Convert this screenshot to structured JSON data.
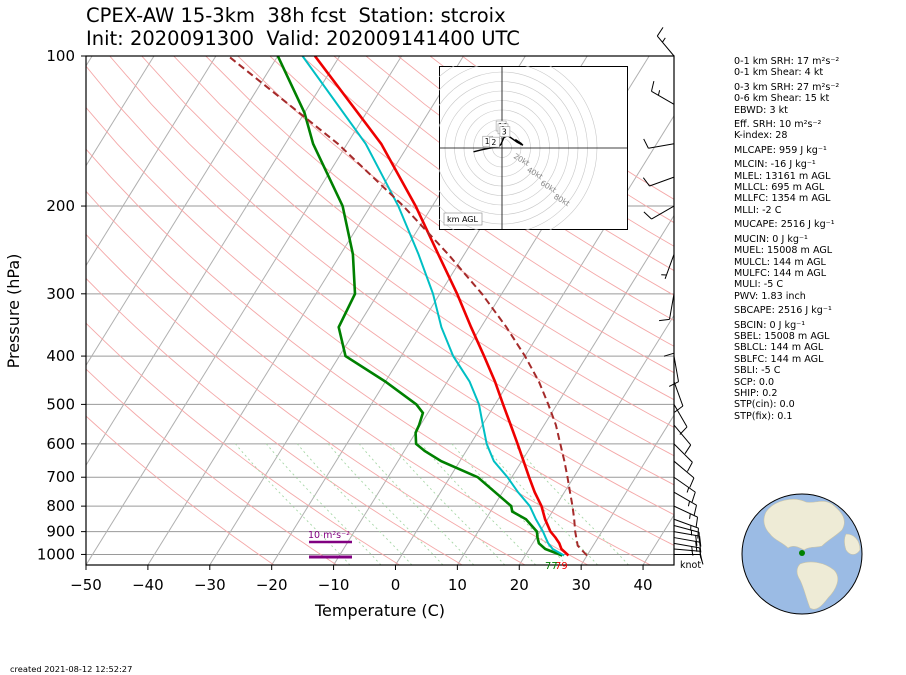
{
  "header": {
    "title_line1": "CPEX-AW 15-3km  38h fcst  Station: stcroix",
    "title_line2": "Init: 2020091300  Valid: 202009141400 UTC"
  },
  "footer": {
    "created": "created 2021-08-12 12:52:27"
  },
  "colors": {
    "temperature": "#ee0000",
    "dewpoint": "#008000",
    "wetbulb": "#00bfc4",
    "parcel": "#a52a2a",
    "srh_bar": "#800080",
    "dry_adiabat": "#f4a8a8",
    "moist_adiabat": "#a7d7a7",
    "isotherm": "#b0b0b0",
    "globe_ocean": "#9bbbe4",
    "globe_land": "#eeebd6"
  },
  "chart_data": {
    "type": "skew-t log-p",
    "xlabel": "Temperature (C)",
    "ylabel": "Pressure (hPa)",
    "xlim": [
      -50,
      45
    ],
    "ylim": [
      1050,
      100
    ],
    "x_ticks": [
      "−50",
      "−40",
      "−30",
      "−20",
      "−10",
      "0",
      "10",
      "20",
      "30",
      "40"
    ],
    "x_tick_values": [
      -50,
      -40,
      -30,
      -20,
      -10,
      0,
      10,
      20,
      30,
      40
    ],
    "y_ticks": [
      "100",
      "200",
      "300",
      "400",
      "500",
      "600",
      "700",
      "800",
      "900",
      "1000"
    ],
    "y_tick_values": [
      100,
      200,
      300,
      400,
      500,
      600,
      700,
      800,
      900,
      1000
    ],
    "y_scale": "log",
    "grid": true,
    "surface_temp_label": "79",
    "surface_dewpoint_label": "77",
    "wind_unit": "knot",
    "srh_bar_label": "10 m²s⁻²",
    "series": [
      {
        "name": "temperature",
        "points": [
          [
            1005,
            27
          ],
          [
            975,
            25.2
          ],
          [
            950,
            24.3
          ],
          [
            925,
            23.1
          ],
          [
            900,
            21.7
          ],
          [
            850,
            19.6
          ],
          [
            800,
            17.7
          ],
          [
            750,
            15.2
          ],
          [
            700,
            12.8
          ],
          [
            650,
            10.3
          ],
          [
            600,
            7.6
          ],
          [
            550,
            4.6
          ],
          [
            500,
            1.3
          ],
          [
            450,
            -2.3
          ],
          [
            400,
            -6.6
          ],
          [
            350,
            -11.6
          ],
          [
            300,
            -17.2
          ],
          [
            250,
            -24.2
          ],
          [
            200,
            -32.7
          ],
          [
            150,
            -44.5
          ],
          [
            100,
            -64
          ]
        ]
      },
      {
        "name": "dewpoint",
        "points": [
          [
            1005,
            26
          ],
          [
            975,
            22.6
          ],
          [
            950,
            21
          ],
          [
            925,
            20.2
          ],
          [
            900,
            19.5
          ],
          [
            850,
            16.5
          ],
          [
            820,
            13.5
          ],
          [
            800,
            12.8
          ],
          [
            750,
            8.8
          ],
          [
            700,
            4.5
          ],
          [
            650,
            -3
          ],
          [
            620,
            -6.7
          ],
          [
            600,
            -8.8
          ],
          [
            570,
            -10
          ],
          [
            550,
            -10.2
          ],
          [
            520,
            -10.8
          ],
          [
            500,
            -12.7
          ],
          [
            450,
            -20
          ],
          [
            400,
            -29
          ],
          [
            350,
            -33
          ],
          [
            300,
            -33.7
          ],
          [
            250,
            -38
          ],
          [
            200,
            -44.5
          ],
          [
            150,
            -55.5
          ],
          [
            130,
            -60
          ],
          [
            100,
            -70
          ]
        ]
      },
      {
        "name": "wetbulb",
        "points": [
          [
            1005,
            26.3
          ],
          [
            975,
            23.8
          ],
          [
            950,
            22.5
          ],
          [
            925,
            21.5
          ],
          [
            900,
            20.5
          ],
          [
            850,
            18.1
          ],
          [
            800,
            15.8
          ],
          [
            750,
            12.5
          ],
          [
            700,
            9.3
          ],
          [
            650,
            5.5
          ],
          [
            600,
            2.6
          ],
          [
            550,
            0.1
          ],
          [
            500,
            -2.6
          ],
          [
            450,
            -6.4
          ],
          [
            400,
            -11.6
          ],
          [
            350,
            -16.4
          ],
          [
            300,
            -21.1
          ],
          [
            250,
            -27.4
          ],
          [
            200,
            -35.5
          ],
          [
            150,
            -47
          ],
          [
            100,
            -66
          ]
        ]
      },
      {
        "name": "parcel",
        "points": [
          [
            1005,
            30
          ],
          [
            960,
            27.5
          ],
          [
            900,
            25.7
          ],
          [
            850,
            24.3
          ],
          [
            800,
            22.7
          ],
          [
            750,
            20.9
          ],
          [
            700,
            19
          ],
          [
            650,
            16.9
          ],
          [
            600,
            14.5
          ],
          [
            550,
            11.9
          ],
          [
            500,
            8.6
          ],
          [
            450,
            4.8
          ],
          [
            400,
            0
          ],
          [
            350,
            -5.9
          ],
          [
            300,
            -13.2
          ],
          [
            250,
            -22.6
          ],
          [
            200,
            -34.7
          ],
          [
            150,
            -51.5
          ],
          [
            100,
            -78
          ]
        ]
      }
    ],
    "wind_barbs": [
      {
        "p": 1000,
        "speed": 10,
        "dir": 90
      },
      {
        "p": 975,
        "speed": 15,
        "dir": 95
      },
      {
        "p": 950,
        "speed": 15,
        "dir": 100
      },
      {
        "p": 925,
        "speed": 20,
        "dir": 100
      },
      {
        "p": 900,
        "speed": 20,
        "dir": 100
      },
      {
        "p": 875,
        "speed": 15,
        "dir": 105
      },
      {
        "p": 850,
        "speed": 15,
        "dir": 110
      },
      {
        "p": 800,
        "speed": 15,
        "dir": 115
      },
      {
        "p": 750,
        "speed": 15,
        "dir": 120
      },
      {
        "p": 700,
        "speed": 15,
        "dir": 125
      },
      {
        "p": 650,
        "speed": 10,
        "dir": 130
      },
      {
        "p": 600,
        "speed": 10,
        "dir": 135
      },
      {
        "p": 550,
        "speed": 10,
        "dir": 140
      },
      {
        "p": 500,
        "speed": 10,
        "dir": 150
      },
      {
        "p": 450,
        "speed": 10,
        "dir": 160
      },
      {
        "p": 400,
        "speed": 10,
        "dir": 170
      },
      {
        "p": 350,
        "speed": 10,
        "dir": 180
      },
      {
        "p": 300,
        "speed": 10,
        "dir": 190
      },
      {
        "p": 250,
        "speed": 5,
        "dir": 200
      },
      {
        "p": 200,
        "speed": 10,
        "dir": 240
      },
      {
        "p": 175,
        "speed": 10,
        "dir": 250
      },
      {
        "p": 150,
        "speed": 10,
        "dir": 260
      },
      {
        "p": 125,
        "speed": 15,
        "dir": 300
      },
      {
        "p": 100,
        "speed": 15,
        "dir": 320
      }
    ]
  },
  "hodograph": {
    "legend": "km AGL",
    "ring_labels": [
      "20kt",
      "40kt",
      "60kt",
      "80kt"
    ],
    "ring_values": [
      20,
      40,
      60,
      80
    ],
    "height_labels": [
      "10",
      "6",
      "3",
      "1",
      "2"
    ],
    "trace": [
      [
        -30,
        -4
      ],
      [
        -22,
        -2
      ],
      [
        -12,
        0
      ],
      [
        -6,
        1
      ],
      [
        -3,
        2
      ],
      [
        -1,
        4
      ],
      [
        2,
        11
      ],
      [
        6,
        13
      ],
      [
        9,
        11
      ],
      [
        12,
        9
      ],
      [
        16,
        6
      ],
      [
        22,
        3
      ],
      [
        20,
        5
      ],
      [
        14,
        9
      ]
    ]
  },
  "indices": [
    "0-1 km SRH: 17 m²s⁻²",
    "0-1 km Shear: 4 kt",
    "0-3 km SRH: 27 m²s⁻²",
    "0-6 km Shear: 15 kt",
    "EBWD: 3 kt",
    "Eff. SRH: 10 m²s⁻²",
    "K-index: 28",
    "MLCAPE: 959 J kg⁻¹",
    "MLCIN: -16 J kg⁻¹",
    "MLEL: 13161 m AGL",
    "MLLCL: 695 m AGL",
    "MLLFC: 1354 m AGL",
    "MLLI: -2 C",
    "MUCAPE: 2516 J kg⁻¹",
    "MUCIN: 0 J kg⁻¹",
    "MUEL: 15008 m AGL",
    "MULCL: 144 m AGL",
    "MULFC: 144 m AGL",
    "MULI: -5 C",
    "PWV: 1.83 inch",
    "SBCAPE: 2516 J kg⁻¹",
    "SBCIN: 0 J kg⁻¹",
    "SBEL: 15008 m AGL",
    "SBLCL: 144 m AGL",
    "SBLFC: 144 m AGL",
    "SBLI: -5 C",
    "SCP: 0.0",
    "SHIP: 0.2",
    "STP(cin): 0.0",
    "STP(fix): 0.1"
  ]
}
